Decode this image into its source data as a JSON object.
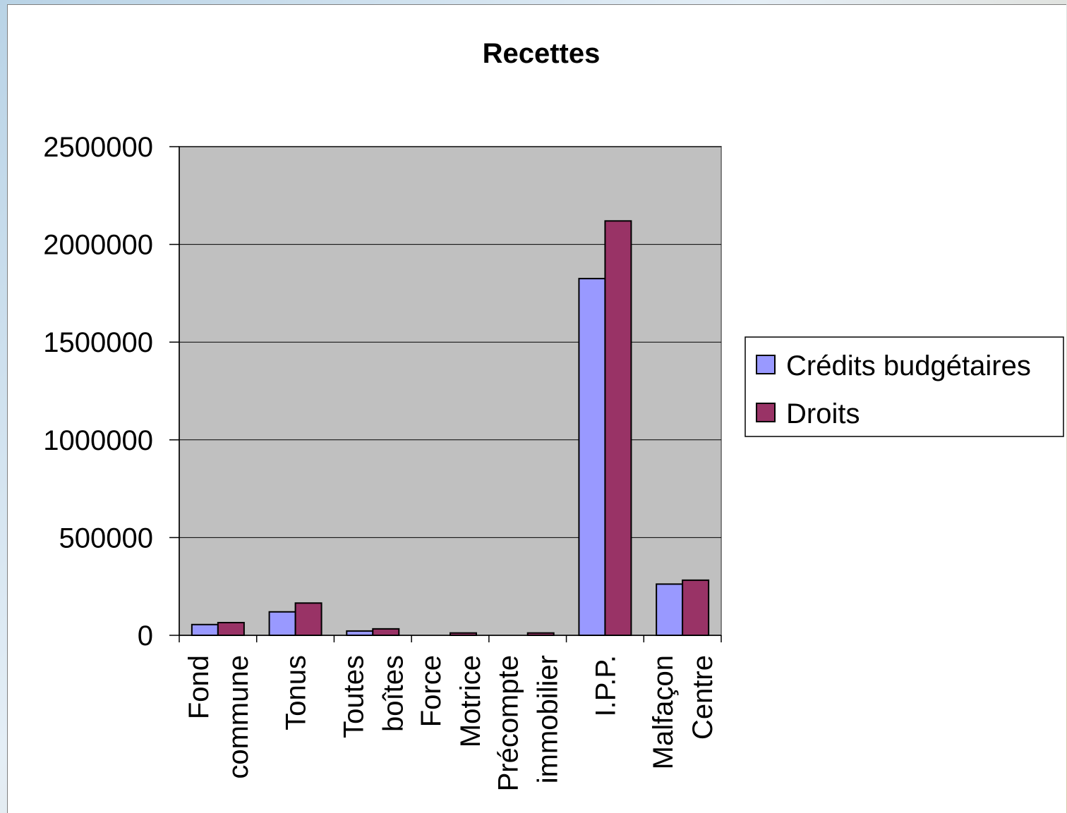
{
  "chart_data": {
    "type": "bar",
    "title": "Recettes",
    "xlabel": "",
    "ylabel": "",
    "categories": [
      [
        "Fond",
        "commune"
      ],
      [
        "Tonus"
      ],
      [
        "Toutes",
        "boîtes"
      ],
      [
        "Force",
        "Motrice"
      ],
      [
        "Précompte",
        "immobilier"
      ],
      [
        "I.P.P."
      ],
      [
        "Malfaçon",
        "Centre"
      ]
    ],
    "series": [
      {
        "name": "Crédits budgétaires",
        "color": "#9999ff",
        "values": [
          55000,
          120000,
          22000,
          0,
          0,
          1825000,
          262000
        ]
      },
      {
        "name": "Droits",
        "color": "#993366",
        "values": [
          65000,
          165000,
          33000,
          12000,
          12000,
          2120000,
          282000
        ]
      }
    ],
    "yticks": [
      "0",
      "500000",
      "1000000",
      "1500000",
      "2000000",
      "2500000"
    ],
    "ylim": [
      0,
      2500000
    ],
    "grid": true,
    "plot_background": "#c0c0c0",
    "legend_position": "right"
  }
}
